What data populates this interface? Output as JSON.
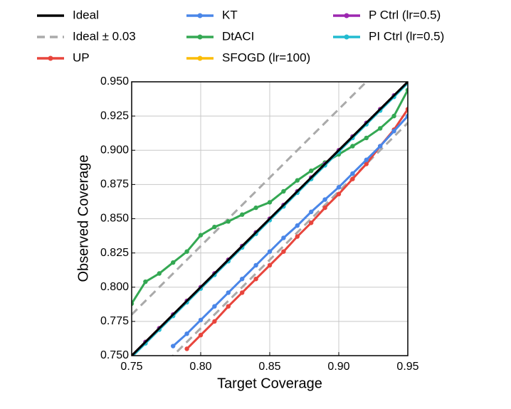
{
  "chart_data": {
    "type": "line",
    "xlabel": "Target Coverage",
    "ylabel": "Observed Coverage",
    "xlim": [
      0.75,
      0.95
    ],
    "ylim": [
      0.75,
      0.95
    ],
    "xticks": [
      0.75,
      {
        "value": 0.8,
        "label": "0.80"
      },
      0.85,
      {
        "value": 0.9,
        "label": "0.90"
      },
      0.95
    ],
    "yticks": [
      {
        "value": 0.75,
        "label": "0.750"
      },
      {
        "value": 0.775,
        "label": "0.775"
      },
      {
        "value": 0.8,
        "label": "0.800"
      },
      {
        "value": 0.825,
        "label": "0.825"
      },
      {
        "value": 0.85,
        "label": "0.850"
      },
      {
        "value": 0.875,
        "label": "0.875"
      },
      {
        "value": 0.9,
        "label": "0.900"
      },
      {
        "value": 0.925,
        "label": "0.925"
      },
      {
        "value": 0.95,
        "label": "0.950"
      }
    ],
    "grid": true,
    "x": [
      0.75,
      0.76,
      0.77,
      0.78,
      0.79,
      0.8,
      0.81,
      0.82,
      0.83,
      0.84,
      0.85,
      0.86,
      0.87,
      0.88,
      0.89,
      0.9,
      0.91,
      0.92,
      0.93,
      0.94,
      0.95
    ],
    "series": [
      {
        "name": "Ideal",
        "color": "#000000",
        "values": [
          0.75,
          0.76,
          0.77,
          0.78,
          0.79,
          0.8,
          0.81,
          0.82,
          0.83,
          0.84,
          0.85,
          0.86,
          0.87,
          0.88,
          0.89,
          0.9,
          0.91,
          0.92,
          0.93,
          0.94,
          0.95
        ]
      },
      {
        "name": "Ideal ± 0.03",
        "color": "#aaaaaa",
        "dashed": true,
        "upper": [
          0.78,
          0.79,
          0.8,
          0.81,
          0.82,
          0.83,
          0.84,
          0.85,
          0.86,
          0.87,
          0.88,
          0.89,
          0.9,
          0.91,
          0.92,
          0.93,
          0.94,
          0.95,
          0.96,
          0.97,
          0.98
        ],
        "lower": [
          0.72,
          0.73,
          0.74,
          0.75,
          0.76,
          0.77,
          0.78,
          0.79,
          0.8,
          0.81,
          0.82,
          0.83,
          0.84,
          0.85,
          0.86,
          0.87,
          0.88,
          0.89,
          0.9,
          0.91,
          0.92
        ]
      },
      {
        "name": "UP",
        "color": "#e8453c",
        "markers": true,
        "values": [
          null,
          null,
          null,
          null,
          0.755,
          0.765,
          0.775,
          0.786,
          0.796,
          0.806,
          0.816,
          0.826,
          0.837,
          0.847,
          0.858,
          0.868,
          0.879,
          0.89,
          0.903,
          0.915,
          0.93
        ]
      },
      {
        "name": "KT",
        "color": "#4a86e8",
        "markers": true,
        "values": [
          null,
          null,
          null,
          0.757,
          0.766,
          0.776,
          0.786,
          0.796,
          0.806,
          0.816,
          0.826,
          0.836,
          0.845,
          0.855,
          0.864,
          0.873,
          0.883,
          0.893,
          0.903,
          0.914,
          0.925
        ]
      },
      {
        "name": "DtACI",
        "color": "#34a853",
        "markers": true,
        "values": [
          0.788,
          0.804,
          0.81,
          0.818,
          0.826,
          0.838,
          0.844,
          0.848,
          0.853,
          0.858,
          0.862,
          0.87,
          0.878,
          0.885,
          0.891,
          0.897,
          0.903,
          0.909,
          0.916,
          0.925,
          0.944
        ]
      },
      {
        "name": "SFOGD (lr=100)",
        "color": "#fbbc04",
        "markers": true,
        "values": [
          0.75,
          0.76,
          0.77,
          0.78,
          0.79,
          0.8,
          0.81,
          0.82,
          0.83,
          0.84,
          0.85,
          0.86,
          0.87,
          0.88,
          0.89,
          0.9,
          0.91,
          0.92,
          0.93,
          0.94,
          0.95
        ]
      },
      {
        "name": "P Ctrl (lr=0.5)",
        "color": "#9c27b0",
        "markers": true,
        "values": [
          0.75,
          0.76,
          0.77,
          0.78,
          0.79,
          0.8,
          0.81,
          0.82,
          0.83,
          0.84,
          0.85,
          0.86,
          0.87,
          0.88,
          0.89,
          0.9,
          0.91,
          0.92,
          0.93,
          0.94,
          0.95
        ]
      },
      {
        "name": "PI Ctrl (lr=0.5)",
        "color": "#22bbd0",
        "markers": true,
        "values": [
          0.749,
          0.759,
          0.769,
          0.779,
          0.789,
          0.799,
          0.809,
          0.819,
          0.829,
          0.839,
          0.849,
          0.859,
          0.869,
          0.879,
          0.889,
          0.899,
          0.909,
          0.919,
          0.929,
          0.939,
          0.949
        ]
      }
    ]
  }
}
